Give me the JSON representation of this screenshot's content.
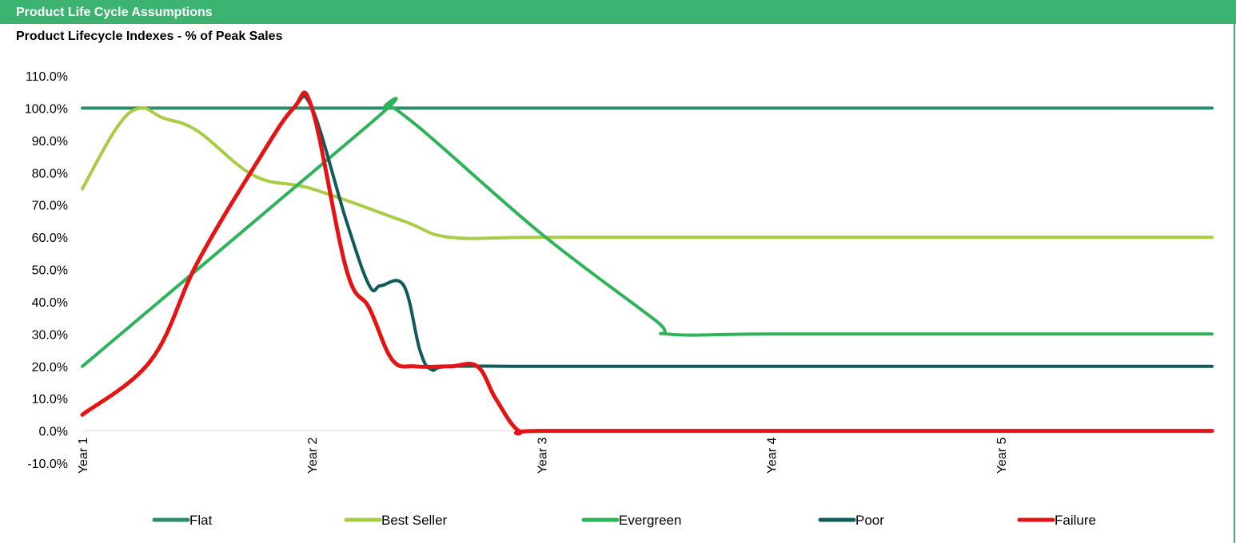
{
  "header": {
    "title": "Product Life Cycle Assumptions"
  },
  "colors": {
    "header_bg": "#3cb371",
    "flat": "#2e8b6e",
    "best_seller": "#a8cc46",
    "evergreen": "#2eb35a",
    "poor": "#0f5a5a",
    "failure": "#e41414"
  },
  "chart_data": {
    "type": "line",
    "title": "Product Lifecycle Indexes - % of Peak Sales",
    "xlabel": "",
    "ylabel": "",
    "ylim": [
      -10,
      110
    ],
    "yticks": [
      "110.0%",
      "100.0%",
      "90.0%",
      "80.0%",
      "70.0%",
      "60.0%",
      "50.0%",
      "40.0%",
      "30.0%",
      "20.0%",
      "10.0%",
      "0.0%",
      "-10.0%"
    ],
    "ytick_values": [
      110,
      100,
      90,
      80,
      70,
      60,
      50,
      40,
      30,
      20,
      10,
      0,
      -10
    ],
    "xticks": [
      "Year 1",
      "Year 2",
      "Year 3",
      "Year 4",
      "Year 5"
    ],
    "xtick_positions": [
      1,
      2,
      3,
      4,
      5
    ],
    "xlim": [
      1,
      5.92
    ],
    "grid": false,
    "legend_position": "bottom",
    "series": [
      {
        "name": "Flat",
        "color": "#2e8b6e",
        "x": [
          1,
          5.92
        ],
        "y": [
          100,
          100
        ]
      },
      {
        "name": "Best Seller",
        "color": "#a8cc46",
        "x": [
          1,
          1.15,
          1.25,
          1.35,
          1.5,
          1.75,
          2.0,
          2.4,
          2.6,
          3.0,
          4.0,
          5.0,
          5.92
        ],
        "y": [
          75,
          94,
          100,
          97,
          93,
          79,
          75,
          65,
          60,
          60,
          60,
          60,
          60
        ]
      },
      {
        "name": "Evergreen",
        "color": "#2eb35a",
        "x": [
          1,
          2.25,
          2.32,
          2.45,
          3.0,
          3.5,
          3.55,
          4.0,
          5.0,
          5.92
        ],
        "y": [
          20,
          95,
          100,
          95,
          61,
          34,
          30,
          30,
          30,
          30
        ]
      },
      {
        "name": "Poor",
        "color": "#0f5a5a",
        "x": [
          1,
          1.3,
          1.5,
          1.75,
          1.92,
          2.0,
          2.15,
          2.25,
          2.3,
          2.4,
          2.47,
          2.52,
          2.6,
          3.0,
          4.0,
          5.0,
          5.92
        ],
        "y": [
          5,
          22,
          52,
          82,
          100,
          100,
          65,
          45,
          45,
          45,
          25,
          19,
          20,
          20,
          20,
          20,
          20
        ]
      },
      {
        "name": "Failure",
        "color": "#e41414",
        "x": [
          1,
          1.3,
          1.5,
          1.75,
          1.92,
          2.0,
          2.15,
          2.25,
          2.35,
          2.45,
          2.6,
          2.72,
          2.8,
          2.9,
          3.0,
          4.0,
          5.0,
          5.92
        ],
        "y": [
          5,
          22,
          52,
          82,
          100,
          100,
          50,
          38,
          22,
          20,
          20,
          20,
          10,
          0,
          0,
          0,
          0,
          0
        ]
      }
    ]
  }
}
